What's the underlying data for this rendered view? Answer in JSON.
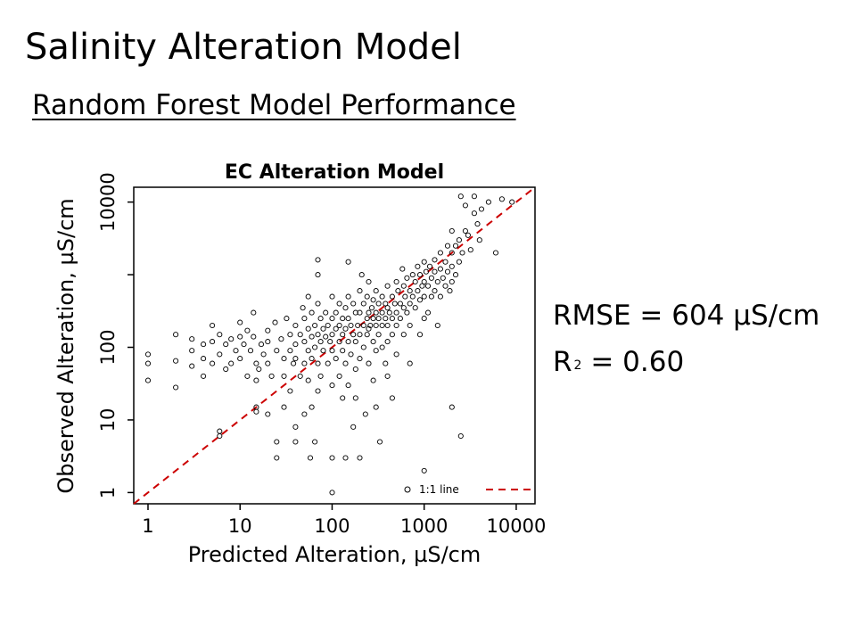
{
  "slide": {
    "title": "Salinity Alteration Model",
    "subtitle": "Random Forest Model Performance",
    "rmse": "RMSE = 604 µS/cm",
    "r2_label": "R",
    "r2_sup": "2",
    "r2_value": " = 0.60"
  },
  "chart_data": {
    "type": "scatter",
    "title": "EC Alteration Model",
    "xlabel": "Predicted Alteration, µS/cm",
    "ylabel": "Observed Alteration, µS/cm",
    "xscale": "log",
    "yscale": "log",
    "xlim": [
      0.7,
      16000
    ],
    "ylim": [
      0.7,
      16000
    ],
    "xticks": [
      1,
      10,
      100,
      1000,
      10000
    ],
    "xtick_labels": [
      "1",
      "10",
      "100",
      "1000",
      "10000"
    ],
    "yticks": [
      1,
      10,
      100,
      10000
    ],
    "ytick_labels": [
      "1",
      "10",
      "100",
      "10000"
    ],
    "y_minor_tick": 1000,
    "grid": false,
    "legend": {
      "placement": "bottom-right",
      "points_label": "",
      "line_label": "1:1 line"
    },
    "series": [
      {
        "marker": "open-circle",
        "points": [
          [
            1,
            80
          ],
          [
            1,
            60
          ],
          [
            1,
            35
          ],
          [
            2,
            150
          ],
          [
            2,
            65
          ],
          [
            2,
            28
          ],
          [
            3,
            130
          ],
          [
            3,
            90
          ],
          [
            3,
            55
          ],
          [
            4,
            110
          ],
          [
            4,
            70
          ],
          [
            4,
            40
          ],
          [
            5,
            200
          ],
          [
            5,
            120
          ],
          [
            5,
            60
          ],
          [
            6,
            150
          ],
          [
            6,
            80
          ],
          [
            6,
            7
          ],
          [
            6,
            6
          ],
          [
            7,
            110
          ],
          [
            7,
            50
          ],
          [
            8,
            130
          ],
          [
            8,
            60
          ],
          [
            9,
            90
          ],
          [
            10,
            220
          ],
          [
            10,
            140
          ],
          [
            10,
            70
          ],
          [
            11,
            110
          ],
          [
            12,
            170
          ],
          [
            12,
            40
          ],
          [
            13,
            90
          ],
          [
            14,
            300
          ],
          [
            14,
            140
          ],
          [
            15,
            60
          ],
          [
            15,
            35
          ],
          [
            15,
            15
          ],
          [
            15,
            13
          ],
          [
            16,
            50
          ],
          [
            17,
            110
          ],
          [
            18,
            80
          ],
          [
            20,
            170
          ],
          [
            20,
            120
          ],
          [
            20,
            60
          ],
          [
            20,
            12
          ],
          [
            22,
            40
          ],
          [
            24,
            220
          ],
          [
            25,
            90
          ],
          [
            25,
            5
          ],
          [
            25,
            3
          ],
          [
            28,
            130
          ],
          [
            30,
            70
          ],
          [
            30,
            40
          ],
          [
            30,
            15
          ],
          [
            32,
            250
          ],
          [
            35,
            150
          ],
          [
            35,
            90
          ],
          [
            35,
            25
          ],
          [
            38,
            60
          ],
          [
            40,
            200
          ],
          [
            40,
            110
          ],
          [
            40,
            70
          ],
          [
            40,
            8
          ],
          [
            40,
            5
          ],
          [
            45,
            150
          ],
          [
            45,
            40
          ],
          [
            48,
            350
          ],
          [
            50,
            250
          ],
          [
            50,
            120
          ],
          [
            50,
            60
          ],
          [
            50,
            12
          ],
          [
            55,
            500
          ],
          [
            55,
            180
          ],
          [
            55,
            90
          ],
          [
            55,
            35
          ],
          [
            58,
            3
          ],
          [
            60,
            300
          ],
          [
            60,
            140
          ],
          [
            60,
            70
          ],
          [
            60,
            15
          ],
          [
            65,
            200
          ],
          [
            65,
            100
          ],
          [
            65,
            5
          ],
          [
            70,
            1600
          ],
          [
            70,
            1000
          ],
          [
            70,
            400
          ],
          [
            70,
            150
          ],
          [
            70,
            60
          ],
          [
            70,
            25
          ],
          [
            75,
            250
          ],
          [
            75,
            120
          ],
          [
            75,
            40
          ],
          [
            80,
            180
          ],
          [
            80,
            90
          ],
          [
            85,
            300
          ],
          [
            85,
            140
          ],
          [
            90,
            200
          ],
          [
            90,
            60
          ],
          [
            95,
            120
          ],
          [
            100,
            500
          ],
          [
            100,
            250
          ],
          [
            100,
            150
          ],
          [
            100,
            90
          ],
          [
            100,
            30
          ],
          [
            100,
            3
          ],
          [
            100,
            1
          ],
          [
            110,
            300
          ],
          [
            110,
            180
          ],
          [
            110,
            70
          ],
          [
            120,
            400
          ],
          [
            120,
            200
          ],
          [
            120,
            120
          ],
          [
            120,
            40
          ],
          [
            130,
            250
          ],
          [
            130,
            150
          ],
          [
            130,
            90
          ],
          [
            130,
            20
          ],
          [
            140,
            350
          ],
          [
            140,
            180
          ],
          [
            140,
            60
          ],
          [
            140,
            3
          ],
          [
            150,
            1500
          ],
          [
            150,
            500
          ],
          [
            150,
            250
          ],
          [
            150,
            120
          ],
          [
            150,
            30
          ],
          [
            160,
            200
          ],
          [
            160,
            80
          ],
          [
            170,
            400
          ],
          [
            170,
            150
          ],
          [
            170,
            8
          ],
          [
            180,
            300
          ],
          [
            180,
            120
          ],
          [
            180,
            50
          ],
          [
            180,
            20
          ],
          [
            190,
            200
          ],
          [
            200,
            600
          ],
          [
            200,
            300
          ],
          [
            200,
            150
          ],
          [
            200,
            70
          ],
          [
            200,
            3
          ],
          [
            210,
            1000
          ],
          [
            220,
            400
          ],
          [
            220,
            200
          ],
          [
            220,
            100
          ],
          [
            230,
            12
          ],
          [
            240,
            500
          ],
          [
            240,
            250
          ],
          [
            240,
            150
          ],
          [
            250,
            800
          ],
          [
            250,
            300
          ],
          [
            250,
            180
          ],
          [
            250,
            60
          ],
          [
            260,
            200
          ],
          [
            270,
            350
          ],
          [
            280,
            450
          ],
          [
            280,
            250
          ],
          [
            280,
            120
          ],
          [
            280,
            35
          ],
          [
            300,
            600
          ],
          [
            300,
            300
          ],
          [
            300,
            200
          ],
          [
            300,
            90
          ],
          [
            300,
            15
          ],
          [
            320,
            400
          ],
          [
            320,
            250
          ],
          [
            320,
            150
          ],
          [
            330,
            5
          ],
          [
            350,
            500
          ],
          [
            350,
            300
          ],
          [
            350,
            200
          ],
          [
            350,
            100
          ],
          [
            380,
            400
          ],
          [
            380,
            250
          ],
          [
            380,
            60
          ],
          [
            400,
            700
          ],
          [
            400,
            350
          ],
          [
            400,
            200
          ],
          [
            400,
            120
          ],
          [
            400,
            40
          ],
          [
            420,
            300
          ],
          [
            450,
            500
          ],
          [
            450,
            250
          ],
          [
            450,
            150
          ],
          [
            450,
            20
          ],
          [
            480,
            400
          ],
          [
            500,
            800
          ],
          [
            500,
            300
          ],
          [
            500,
            200
          ],
          [
            500,
            80
          ],
          [
            520,
            600
          ],
          [
            550,
            400
          ],
          [
            550,
            250
          ],
          [
            580,
            1200
          ],
          [
            600,
            700
          ],
          [
            600,
            350
          ],
          [
            600,
            150
          ],
          [
            620,
            500
          ],
          [
            650,
            900
          ],
          [
            650,
            300
          ],
          [
            700,
            600
          ],
          [
            700,
            400
          ],
          [
            700,
            200
          ],
          [
            700,
            60
          ],
          [
            750,
            1000
          ],
          [
            750,
            500
          ],
          [
            800,
            800
          ],
          [
            800,
            350
          ],
          [
            850,
            1300
          ],
          [
            850,
            600
          ],
          [
            900,
            1000
          ],
          [
            900,
            450
          ],
          [
            900,
            150
          ],
          [
            950,
            700
          ],
          [
            1000,
            1500
          ],
          [
            1000,
            800
          ],
          [
            1000,
            500
          ],
          [
            1000,
            250
          ],
          [
            1000,
            2
          ],
          [
            1050,
            1100
          ],
          [
            1100,
            700
          ],
          [
            1100,
            300
          ],
          [
            1150,
            1300
          ],
          [
            1200,
            900
          ],
          [
            1200,
            500
          ],
          [
            1300,
            1600
          ],
          [
            1300,
            1100
          ],
          [
            1300,
            600
          ],
          [
            1400,
            800
          ],
          [
            1400,
            200
          ],
          [
            1500,
            2000
          ],
          [
            1500,
            1200
          ],
          [
            1500,
            500
          ],
          [
            1600,
            900
          ],
          [
            1700,
            1500
          ],
          [
            1700,
            700
          ],
          [
            1800,
            2500
          ],
          [
            1800,
            1100
          ],
          [
            1900,
            600
          ],
          [
            2000,
            4000
          ],
          [
            2000,
            2000
          ],
          [
            2000,
            1300
          ],
          [
            2000,
            800
          ],
          [
            2000,
            15
          ],
          [
            2200,
            2500
          ],
          [
            2200,
            1000
          ],
          [
            2400,
            3000
          ],
          [
            2400,
            1500
          ],
          [
            2500,
            12000
          ],
          [
            2500,
            6
          ],
          [
            2600,
            2000
          ],
          [
            2800,
            4000
          ],
          [
            2800,
            9000
          ],
          [
            3000,
            3500
          ],
          [
            3200,
            2200
          ],
          [
            3500,
            12000
          ],
          [
            3500,
            7000
          ],
          [
            3800,
            5000
          ],
          [
            4000,
            3000
          ],
          [
            4200,
            8000
          ],
          [
            5000,
            10000
          ],
          [
            6000,
            2000
          ],
          [
            7000,
            11000
          ],
          [
            9000,
            10000
          ]
        ]
      },
      {
        "type": "line",
        "style": "dashed",
        "color": "#cc0000",
        "points": [
          [
            0.7,
            0.7
          ],
          [
            16000,
            16000
          ]
        ]
      }
    ]
  }
}
